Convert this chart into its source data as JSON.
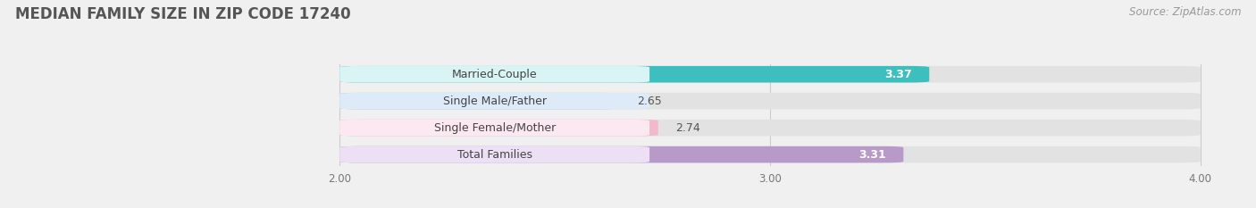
{
  "title": "MEDIAN FAMILY SIZE IN ZIP CODE 17240",
  "source": "Source: ZipAtlas.com",
  "categories": [
    "Married-Couple",
    "Single Male/Father",
    "Single Female/Mother",
    "Total Families"
  ],
  "values": [
    3.37,
    2.65,
    2.74,
    3.31
  ],
  "bar_colors": [
    "#3dbfbf",
    "#a8c8e8",
    "#f4b8cc",
    "#b89ac8"
  ],
  "label_bg_colors": [
    "#d8f4f4",
    "#ddeaf8",
    "#fce8f0",
    "#ede0f4"
  ],
  "xmin": 2.0,
  "xmax": 4.0,
  "xticks": [
    2.0,
    3.0,
    4.0
  ],
  "xtick_labels": [
    "2.00",
    "3.00",
    "4.00"
  ],
  "bar_height": 0.62,
  "background_color": "#f0f0f0",
  "bar_background_color": "#e2e2e2",
  "title_fontsize": 12,
  "label_fontsize": 9,
  "value_fontsize": 9,
  "source_fontsize": 8.5,
  "value_label_colors": [
    "#ffffff",
    "#666666",
    "#666666",
    "#ffffff"
  ],
  "value_inside": [
    true,
    false,
    false,
    true
  ]
}
